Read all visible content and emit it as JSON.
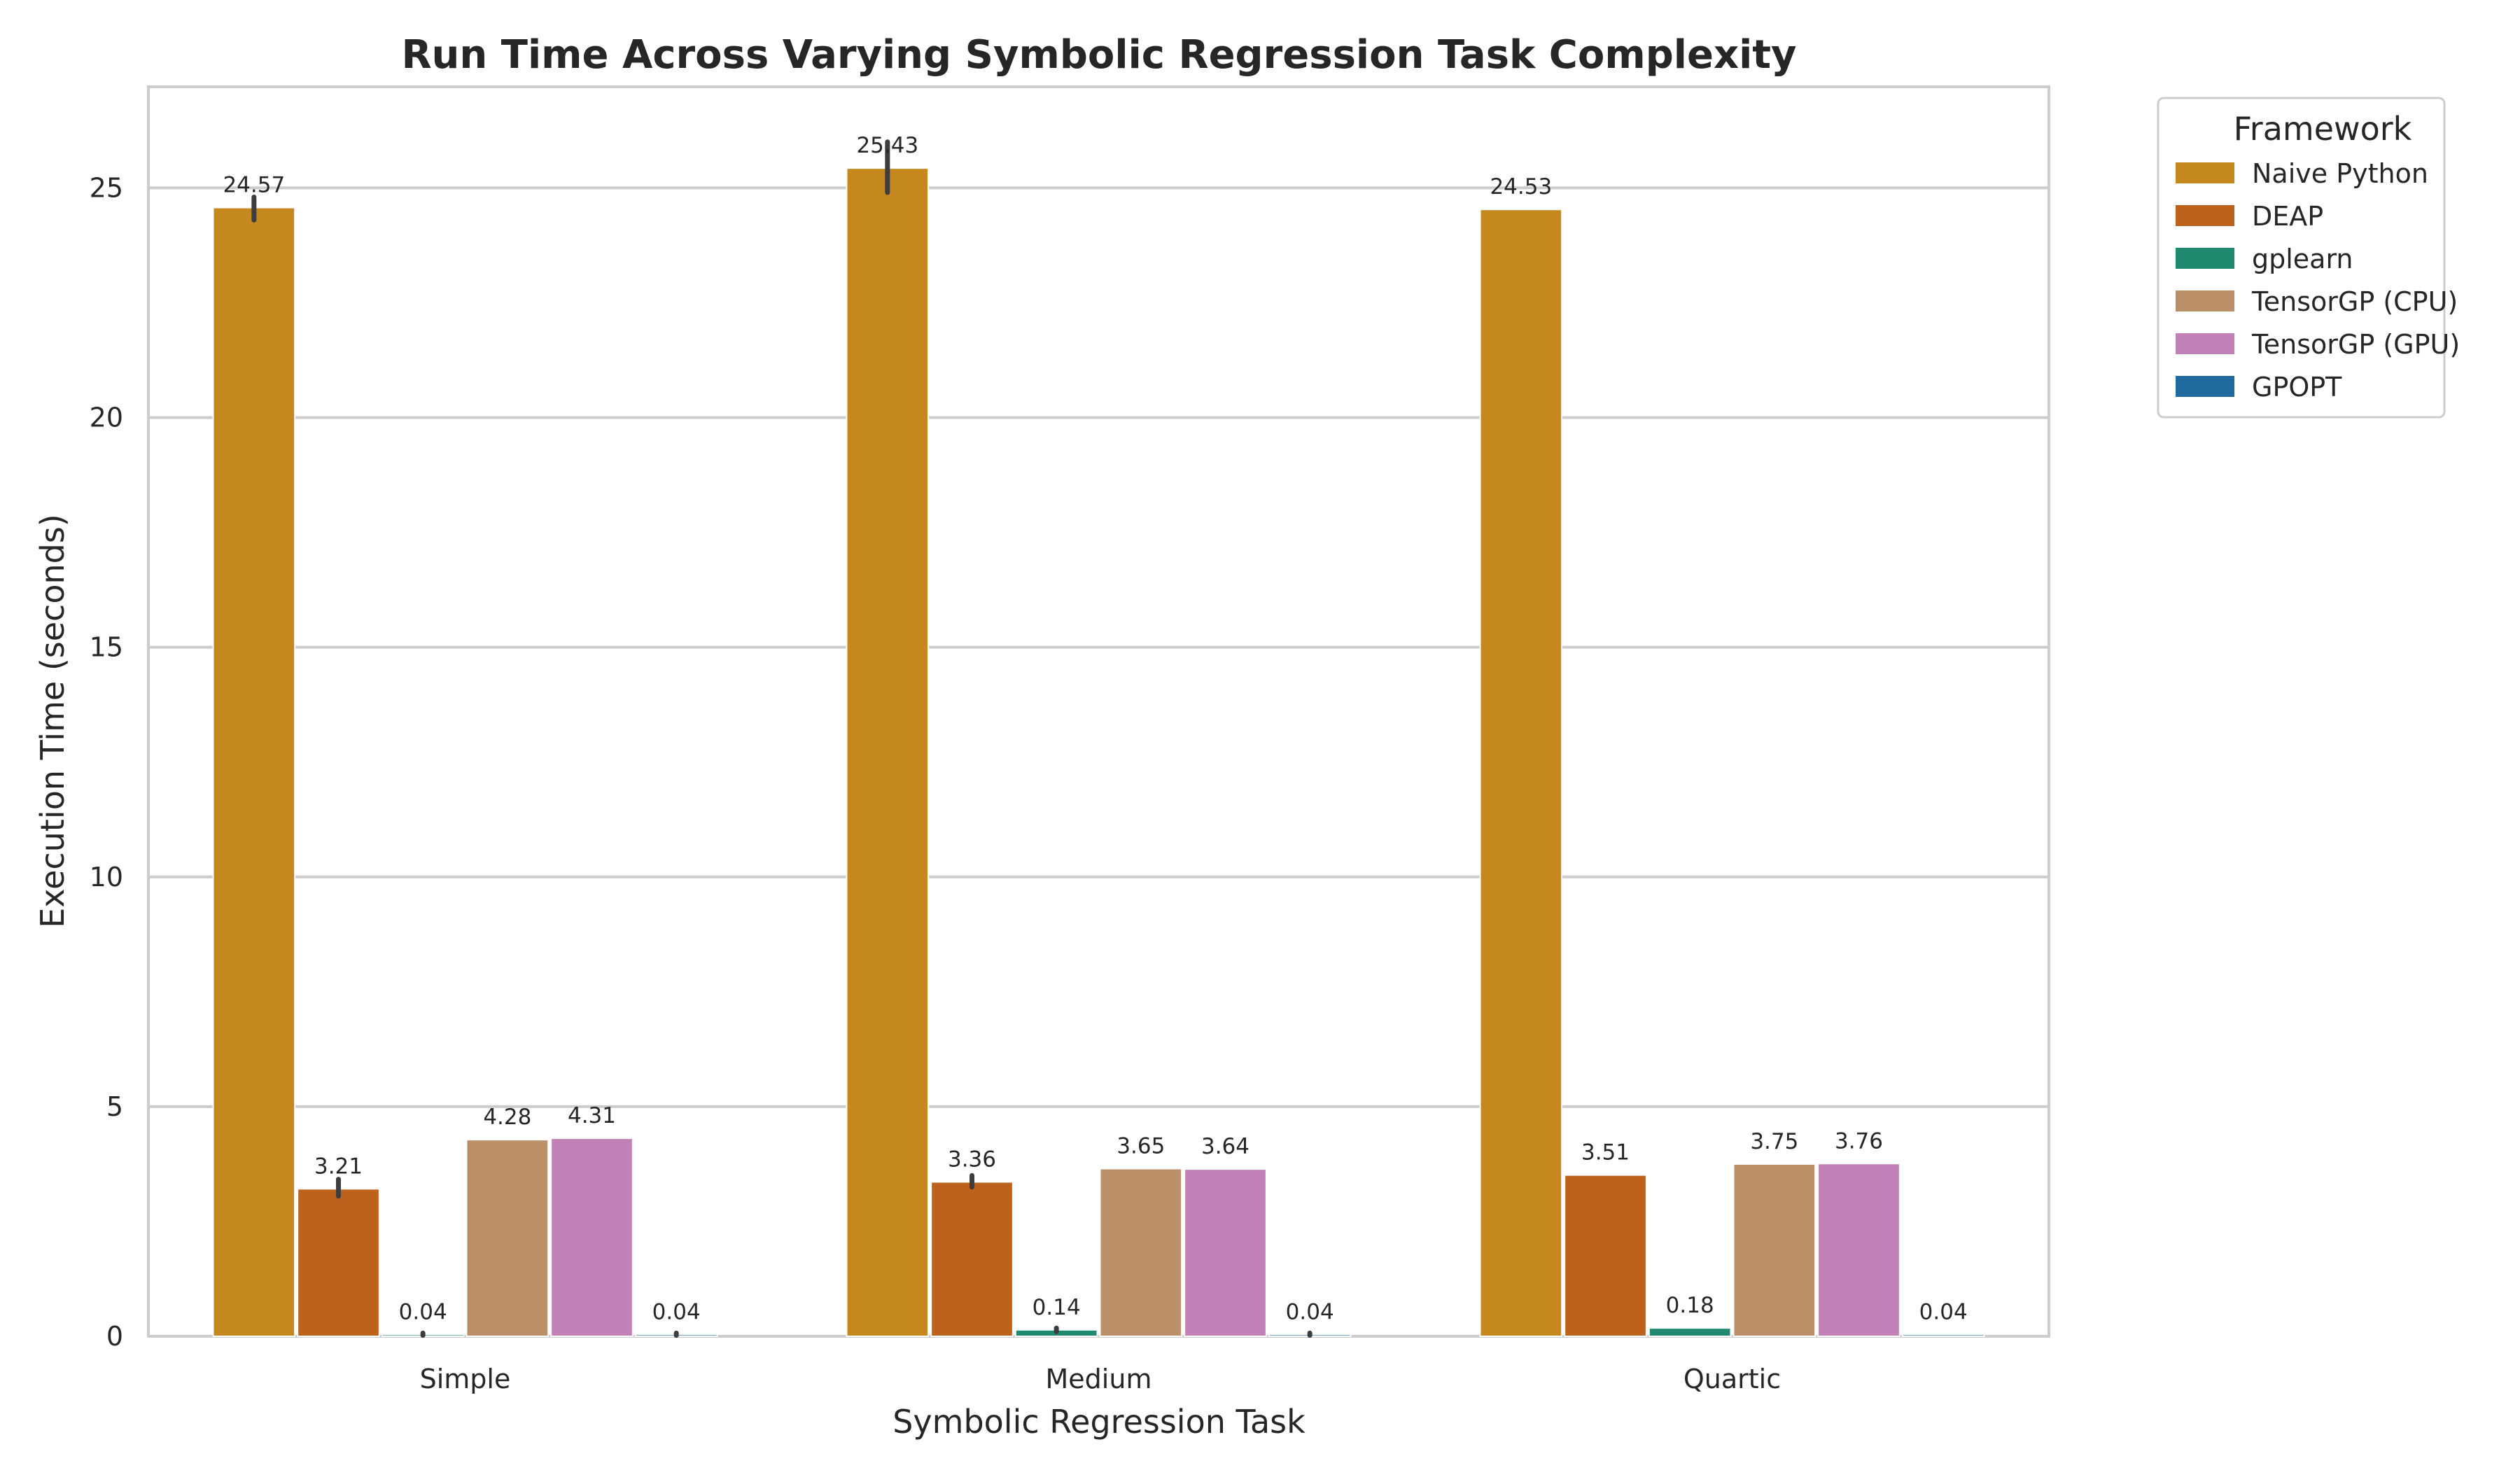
{
  "chart_data": {
    "type": "bar",
    "title": "Run Time Across Varying Symbolic Regression Task Complexity",
    "xlabel": "Symbolic Regression Task",
    "ylabel": "Execution Time (seconds)",
    "categories": [
      "Simple",
      "Medium",
      "Quartic"
    ],
    "ylim": [
      0,
      27.2
    ],
    "yticks": [
      0,
      5,
      10,
      15,
      20,
      25
    ],
    "grid": "horizontal",
    "legend": {
      "title": "Framework",
      "placement": "outside upper-right"
    },
    "series": [
      {
        "name": "Naive Python",
        "color": "#c4881f",
        "values": [
          24.57,
          25.43,
          24.53
        ],
        "labels": [
          "24.57",
          "25.43",
          "24.53"
        ],
        "error": [
          [
            24.3,
            24.8
          ],
          [
            24.9,
            26.0
          ],
          null
        ]
      },
      {
        "name": "DEAP",
        "color": "#bd621d",
        "values": [
          3.21,
          3.36,
          3.51
        ],
        "labels": [
          "3.21",
          "3.36",
          "3.51"
        ],
        "error": [
          [
            3.05,
            3.42
          ],
          [
            3.25,
            3.5
          ],
          null
        ]
      },
      {
        "name": "gplearn",
        "color": "#1f8a70",
        "values": [
          0.04,
          0.14,
          0.18
        ],
        "labels": [
          "0.04",
          "0.14",
          "0.18"
        ],
        "error": [
          [
            0.02,
            0.07
          ],
          [
            0.1,
            0.18
          ],
          null
        ]
      },
      {
        "name": "TensorGP (CPU)",
        "color": "#bb9069",
        "values": [
          4.28,
          3.65,
          3.75
        ],
        "labels": [
          "4.28",
          "3.65",
          "3.75"
        ],
        "error": [
          null,
          null,
          null
        ]
      },
      {
        "name": "TensorGP (GPU)",
        "color": "#c281b6",
        "values": [
          4.31,
          3.64,
          3.76
        ],
        "labels": [
          "4.31",
          "3.64",
          "3.76"
        ],
        "error": [
          null,
          null,
          null
        ]
      },
      {
        "name": "GPOPT",
        "color": "#1f6a9e",
        "values": [
          0.04,
          0.04,
          0.04
        ],
        "labels": [
          "0.04",
          "0.04",
          "0.04"
        ],
        "error": [
          [
            0.02,
            0.07
          ],
          [
            0.02,
            0.07
          ],
          null
        ]
      }
    ]
  }
}
